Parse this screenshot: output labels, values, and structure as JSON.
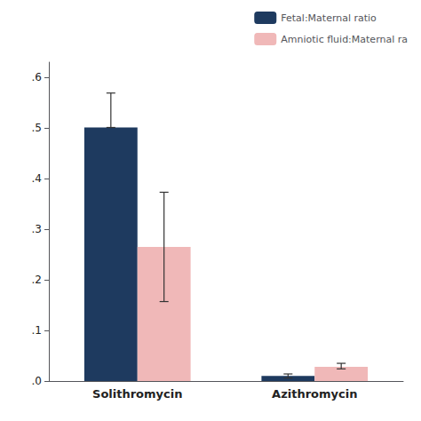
{
  "chart_data": {
    "type": "bar",
    "categories": [
      "Solithromycin",
      "Azithromycin"
    ],
    "series": [
      {
        "name": "Fetal:Maternal ratio",
        "color": "#1e3a5f",
        "values": [
          0.501,
          0.01
        ],
        "err_up": [
          0.068,
          0.004
        ],
        "err_down": [
          0.0,
          0.004
        ]
      },
      {
        "name": "Amniotic fluid:Maternal ra",
        "color": "#f0b8b8",
        "values": [
          0.265,
          0.028
        ],
        "err_up": [
          0.108,
          0.007
        ],
        "err_down": [
          0.108,
          0.004
        ]
      }
    ],
    "ylim": [
      0.0,
      0.63
    ],
    "yticks": [
      {
        "value": 0.0,
        "label": ".0"
      },
      {
        "value": 0.1,
        "label": ".1"
      },
      {
        "value": 0.2,
        "label": ".2"
      },
      {
        "value": 0.3,
        "label": ".3"
      },
      {
        "value": 0.4,
        "label": ".4"
      },
      {
        "value": 0.5,
        "label": ".5"
      },
      {
        "value": 0.6,
        "label": ".6"
      }
    ],
    "grid": false,
    "legend": "upper right"
  }
}
